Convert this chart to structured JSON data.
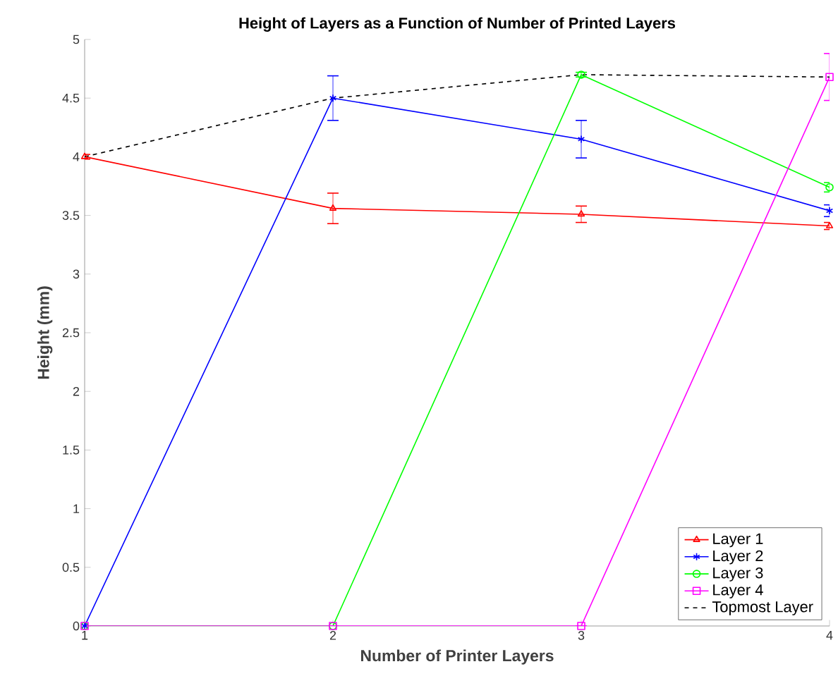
{
  "chart_data": {
    "type": "line",
    "title": "Height of Layers as a Function of Number of Printed Layers",
    "xlabel": "Number of Printer Layers",
    "ylabel": "Height (mm)",
    "x": [
      1,
      2,
      3,
      4
    ],
    "xlim": [
      1,
      4
    ],
    "xticks": [
      1,
      2,
      3,
      4
    ],
    "ylim": [
      0,
      5
    ],
    "yticks": [
      0,
      0.5,
      1,
      1.5,
      2,
      2.5,
      3,
      3.5,
      4,
      4.5,
      5
    ],
    "grid": false,
    "legend": "bottom right",
    "series": [
      {
        "name": "Layer 1",
        "color": "#ff0000",
        "marker": "triangle",
        "values": [
          4.0,
          3.56,
          3.51,
          3.41
        ],
        "errors": [
          0.02,
          0.13,
          0.07,
          0.03
        ]
      },
      {
        "name": "Layer 2",
        "color": "#0000ff",
        "marker": "cross",
        "values": [
          0,
          4.5,
          4.15,
          3.54
        ],
        "errors": [
          null,
          0.19,
          0.16,
          0.05
        ]
      },
      {
        "name": "Layer 3",
        "color": "#00ff00",
        "marker": "circle",
        "values": [
          0,
          0,
          4.7,
          3.74
        ],
        "errors": [
          null,
          null,
          0.02,
          0.04
        ]
      },
      {
        "name": "Layer 4",
        "color": "#ff00ff",
        "marker": "square",
        "values": [
          0,
          0,
          0,
          4.68
        ],
        "errors": [
          null,
          null,
          null,
          0.2
        ]
      },
      {
        "name": "Topmost Layer",
        "color": "#000000",
        "marker": "none",
        "line_style": "dashed",
        "values": [
          4.0,
          4.5,
          4.7,
          4.68
        ]
      }
    ]
  }
}
